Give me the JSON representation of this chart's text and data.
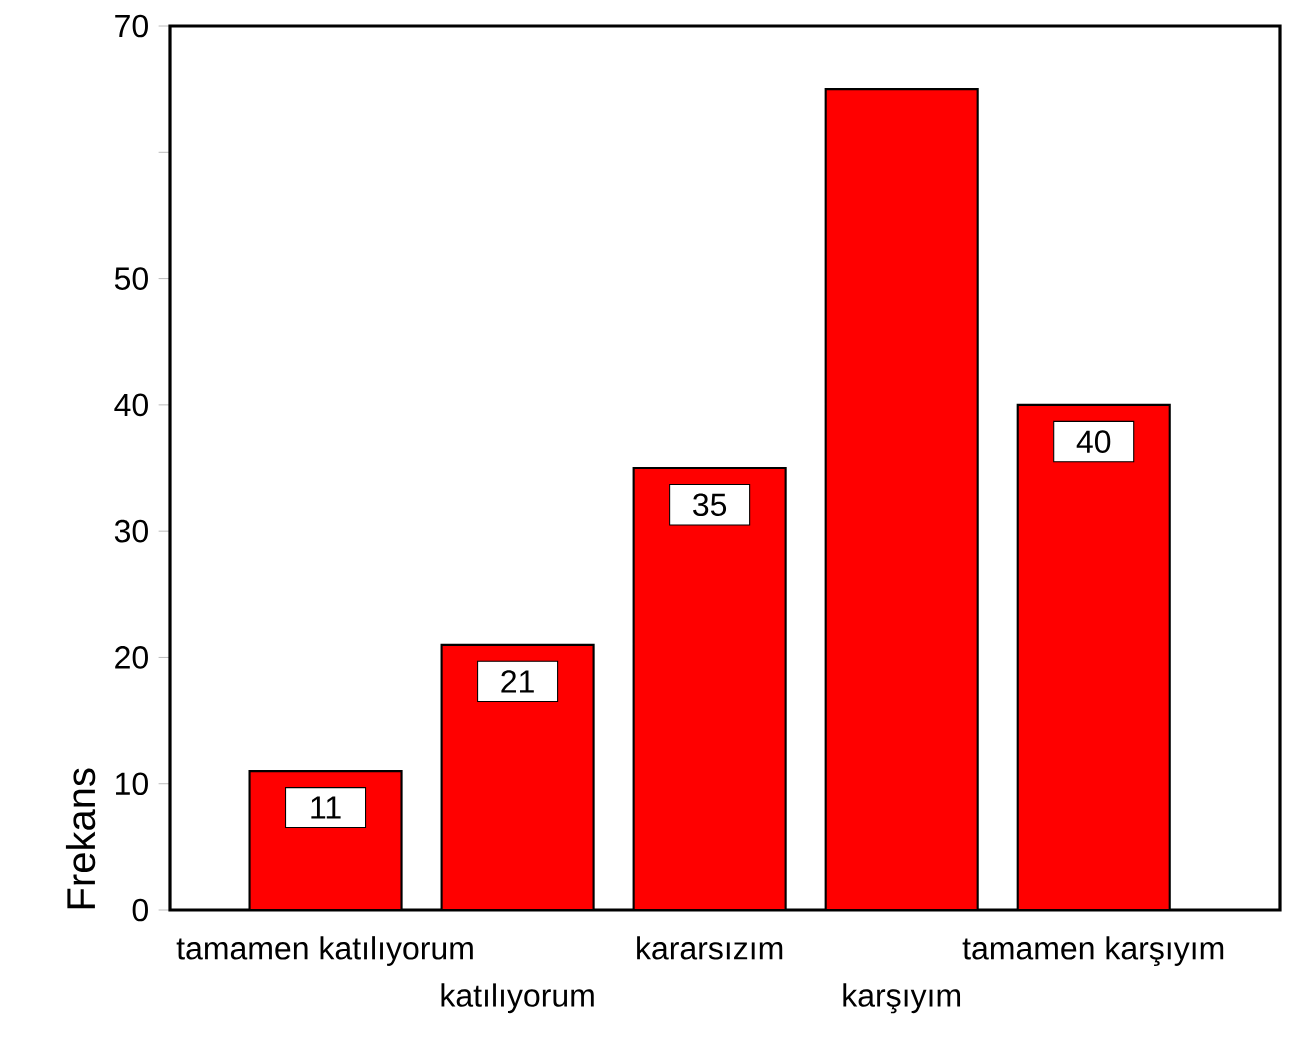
{
  "chart_data": {
    "type": "bar",
    "ylabel": "Frekans",
    "categories": [
      "tamamen katılıyorum",
      "katılıyorum",
      "kararsızım",
      "karşıyım",
      "tamamen karşıyım"
    ],
    "values": [
      11,
      21,
      35,
      65,
      40
    ],
    "value_labels": [
      "11",
      "21",
      "35",
      null,
      "40"
    ],
    "color": "#ff0000",
    "ylim": [
      0,
      70
    ],
    "yticks": [
      0,
      10,
      20,
      30,
      40,
      50,
      {
        "value": 60,
        "label": null
      },
      70
    ],
    "grid": false
  }
}
